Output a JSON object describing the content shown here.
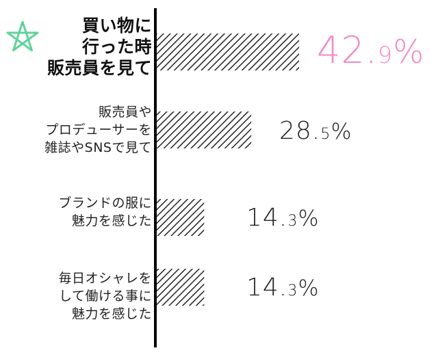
{
  "colors": {
    "bar_hatch": "#222222",
    "axis": "#000000",
    "highlight": "#f28cc7",
    "star": "#5fd39a",
    "text": "#222222"
  },
  "icons": {
    "highlight_marker": "star-icon"
  },
  "chart_data": {
    "type": "bar",
    "orientation": "horizontal",
    "title": "",
    "xlabel": "",
    "ylabel": "",
    "xlim": [
      0,
      50
    ],
    "grid": false,
    "legend": "none",
    "bar_fill": "diagonal-hatch",
    "categories": [
      "買い物に\n行った時\n販売員を見て",
      "販売員や\nプロデューサーを\n雑誌やSNSで見て",
      "ブランドの服に\n魅力を感じた",
      "毎日オシャレを\nして働ける事に\n魅力を感じた"
    ],
    "values": [
      42.9,
      28.5,
      14.3,
      14.3
    ],
    "value_labels": [
      {
        "int": "42.",
        "dec": "9",
        "pct": "%"
      },
      {
        "int": "28.",
        "dec": "5",
        "pct": "%"
      },
      {
        "int": "14.",
        "dec": "3",
        "pct": "%"
      },
      {
        "int": "14.",
        "dec": "3",
        "pct": "%"
      }
    ],
    "highlight_index": 0
  }
}
